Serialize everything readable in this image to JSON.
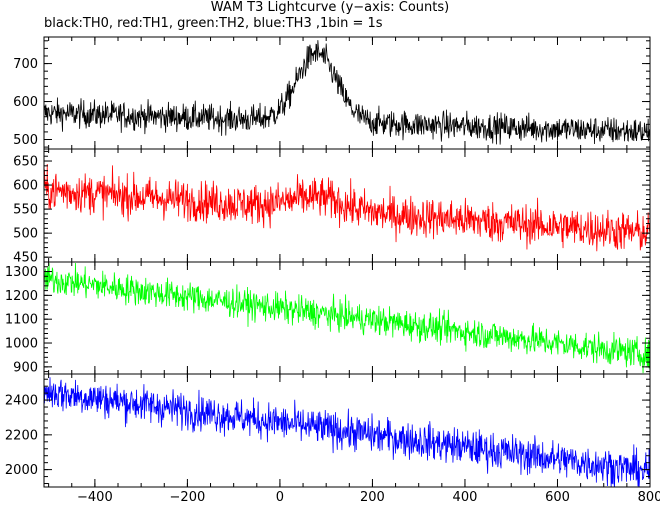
{
  "chart_data": {
    "type": "line",
    "title": "WAM T3 Lightcurve (y−axis: Counts)",
    "subtitle": "black:TH0, red:TH1, green:TH2, blue:TH3 ,1bin = 1s",
    "x_axis": {
      "range": [
        -510,
        800
      ],
      "ticks": [
        -400,
        -200,
        0,
        200,
        400,
        600,
        800
      ],
      "tick_labels": [
        "−400",
        "−200",
        "0",
        "200",
        "400",
        "600",
        "800"
      ]
    },
    "panels": [
      {
        "name": "TH0",
        "color": "#000000",
        "ylim": [
          475,
          770
        ],
        "yticks": [
          500,
          600,
          700
        ],
        "series_x_step": 1,
        "trend": {
          "type": "peak",
          "baseline_start": 570,
          "baseline_end": 520,
          "peak_x": 80,
          "peak_height": 180,
          "peak_width": 60,
          "noise": 35
        }
      },
      {
        "name": "TH1",
        "color": "#ff0000",
        "ylim": [
          440,
          675
        ],
        "yticks": [
          450,
          500,
          550,
          600,
          650
        ],
        "series_x_step": 1,
        "trend": {
          "type": "peak",
          "baseline_start": 590,
          "baseline_end": 500,
          "peak_x": 80,
          "peak_height": 25,
          "peak_width": 80,
          "noise": 40
        }
      },
      {
        "name": "TH2",
        "color": "#00ff00",
        "ylim": [
          870,
          1340
        ],
        "yticks": [
          900,
          1000,
          1100,
          1200,
          1300
        ],
        "series_x_step": 1,
        "trend": {
          "type": "linear",
          "baseline_start": 1270,
          "baseline_end": 950,
          "noise": 60
        }
      },
      {
        "name": "TH3",
        "color": "#0000ff",
        "ylim": [
          1900,
          2550
        ],
        "yticks": [
          2000,
          2200,
          2400
        ],
        "series_x_step": 1,
        "trend": {
          "type": "linear",
          "baseline_start": 2450,
          "baseline_end": 1990,
          "noise": 100
        }
      }
    ]
  }
}
